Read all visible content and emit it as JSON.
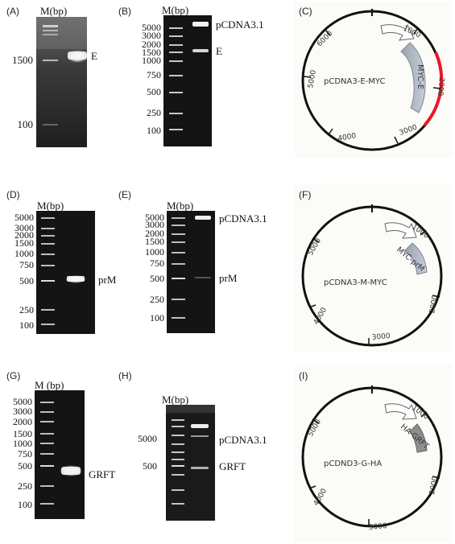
{
  "panels": {
    "A": {
      "letter": "(A)",
      "marker_header": "M(bp)",
      "ladder_labels": [
        "1500",
        "100"
      ],
      "band_label": "E"
    },
    "B": {
      "letter": "(B)",
      "marker_header": "M(bp)",
      "ladder_labels": [
        "5000",
        "3000",
        "2000",
        "1500",
        "1000",
        "750",
        "500",
        "250",
        "100"
      ],
      "band_labels": [
        "pCDNA3.1",
        "E"
      ]
    },
    "C": {
      "letter": "(C)",
      "plasmid_name": "pCDNA3-E-MYC",
      "insert_label": "MYC-E",
      "scale_labels": [
        "1000",
        "2000",
        "3000",
        "4000",
        "5000",
        "6000"
      ],
      "insert_color": "#e8192c"
    },
    "D": {
      "letter": "(D)",
      "marker_header": "M(bp)",
      "ladder_labels": [
        "5000",
        "3000",
        "2000",
        "1500",
        "1000",
        "750",
        "500",
        "250",
        "100"
      ],
      "band_label": "prM"
    },
    "E": {
      "letter": "(E)",
      "marker_header": "M(bp)",
      "ladder_labels": [
        "5000",
        "3000",
        "2000",
        "1500",
        "1000",
        "750",
        "500",
        "250",
        "100"
      ],
      "band_labels": [
        "pCDNA3.1",
        "prM"
      ]
    },
    "F": {
      "letter": "(F)",
      "plasmid_name": "pCDNA3-M-MYC",
      "insert_label": "MYC-prM",
      "scale_labels": [
        "1000",
        "2000",
        "3000",
        "4000",
        "5000"
      ]
    },
    "G": {
      "letter": "(G)",
      "marker_header": "M (bp)",
      "ladder_labels": [
        "5000",
        "3000",
        "2000",
        "1500",
        "1000",
        "750",
        "500",
        "250",
        "100"
      ],
      "band_label": "GRFT"
    },
    "H": {
      "letter": "(H)",
      "marker_header": "M(bp)",
      "ladder_labels": [
        "5000",
        "500"
      ],
      "band_labels": [
        "pCDNA3.1",
        "GRFT"
      ]
    },
    "I": {
      "letter": "(I)",
      "plasmid_name": "pCDND3-G-HA",
      "insert_label": "HA-GRFT",
      "scale_labels": [
        "1000",
        "2000",
        "3000",
        "4000",
        "5000"
      ]
    }
  }
}
